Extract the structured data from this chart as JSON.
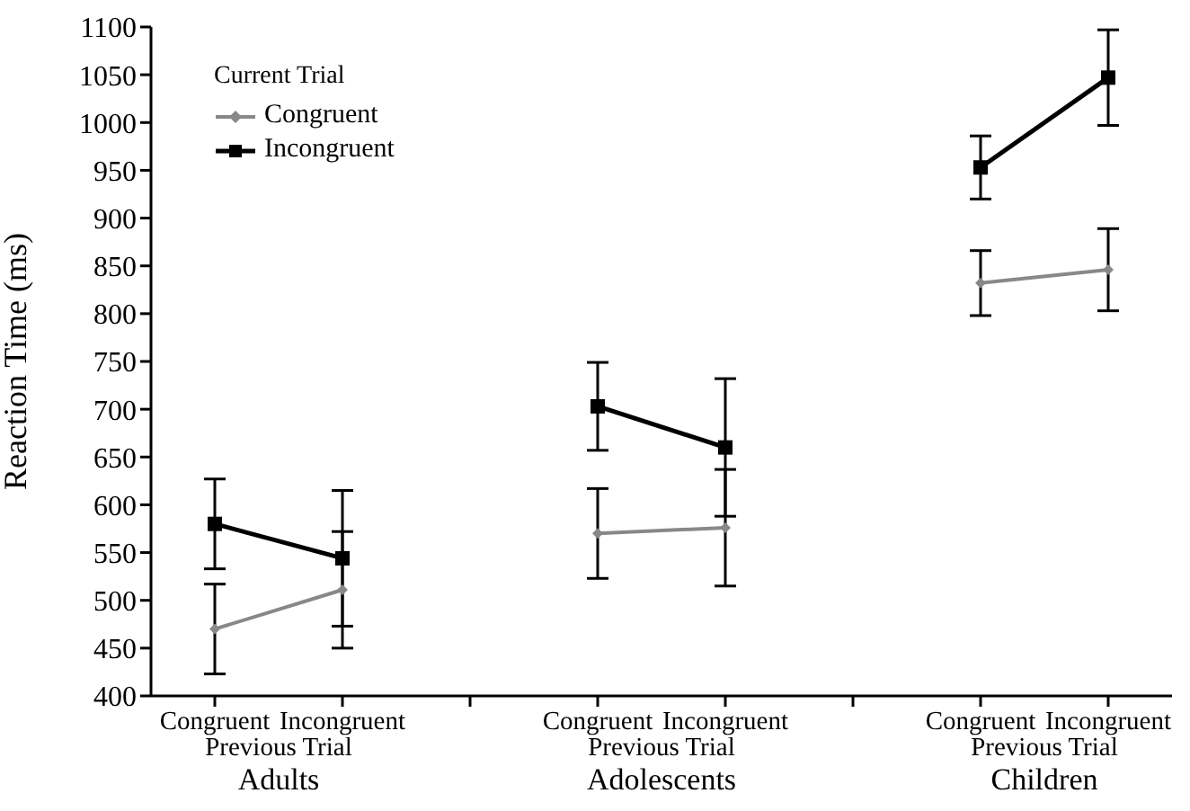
{
  "chart_data": {
    "type": "line",
    "ylabel": "Reaction Time (ms)",
    "legend_title": "Current Trial",
    "categories": [
      "Congruent",
      "Incongruent",
      null,
      "Congruent",
      "Incongruent",
      null,
      "Congruent",
      "Incongruent"
    ],
    "series": [
      {
        "name": "Congruent",
        "color": "#888888",
        "marker": "diamond",
        "values": [
          470,
          511,
          null,
          570,
          576,
          null,
          832,
          846
        ],
        "errors": [
          47,
          61,
          null,
          47,
          61,
          null,
          34,
          43
        ]
      },
      {
        "name": "Incongruent",
        "color": "#000000",
        "marker": "square",
        "values": [
          580,
          544,
          null,
          703,
          660,
          null,
          953,
          1047
        ],
        "errors": [
          47,
          71,
          null,
          46,
          72,
          null,
          33,
          50
        ]
      }
    ],
    "ylim": [
      400,
      1100
    ],
    "yticks": [
      400,
      450,
      500,
      550,
      600,
      650,
      700,
      750,
      800,
      850,
      900,
      950,
      1000,
      1050,
      1100
    ],
    "grid": false,
    "legend": "top left",
    "line_style": "solid",
    "annotations": [
      "Previous Trial",
      "Adults",
      "Previous Trial",
      "Adolescents",
      "Previous Trial",
      "Children"
    ]
  }
}
